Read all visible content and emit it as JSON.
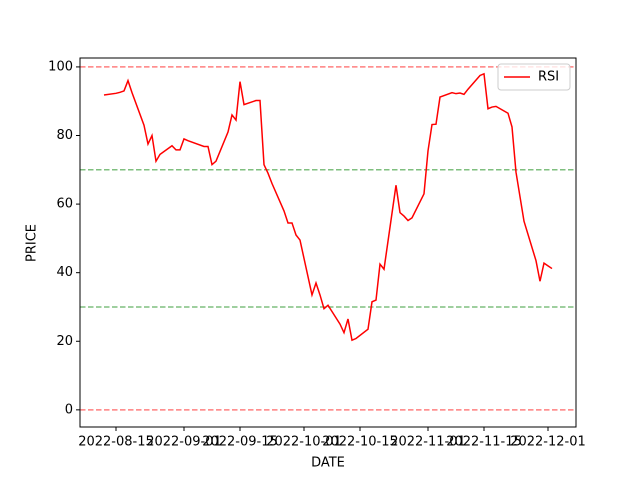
{
  "chart_data": {
    "type": "line",
    "xlabel": "DATE",
    "ylabel": "PRICE",
    "x": [
      "2022-08-12",
      "2022-08-15",
      "2022-08-16",
      "2022-08-17",
      "2022-08-18",
      "2022-08-19",
      "2022-08-22",
      "2022-08-23",
      "2022-08-24",
      "2022-08-25",
      "2022-08-26",
      "2022-08-29",
      "2022-08-30",
      "2022-08-31",
      "2022-09-01",
      "2022-09-02",
      "2022-09-06",
      "2022-09-07",
      "2022-09-08",
      "2022-09-09",
      "2022-09-12",
      "2022-09-13",
      "2022-09-14",
      "2022-09-15",
      "2022-09-16",
      "2022-09-19",
      "2022-09-20",
      "2022-09-21",
      "2022-09-22",
      "2022-09-23",
      "2022-09-26",
      "2022-09-27",
      "2022-09-28",
      "2022-09-29",
      "2022-09-30",
      "2022-10-03",
      "2022-10-04",
      "2022-10-05",
      "2022-10-06",
      "2022-10-07",
      "2022-10-10",
      "2022-10-11",
      "2022-10-12",
      "2022-10-13",
      "2022-10-14",
      "2022-10-17",
      "2022-10-18",
      "2022-10-19",
      "2022-10-20",
      "2022-10-21",
      "2022-10-24",
      "2022-10-25",
      "2022-10-26",
      "2022-10-27",
      "2022-10-28",
      "2022-10-31",
      "2022-11-01",
      "2022-11-02",
      "2022-11-03",
      "2022-11-04",
      "2022-11-07",
      "2022-11-08",
      "2022-11-09",
      "2022-11-10",
      "2022-11-11",
      "2022-11-14",
      "2022-11-15",
      "2022-11-16",
      "2022-11-17",
      "2022-11-18",
      "2022-11-21",
      "2022-11-22",
      "2022-11-23",
      "2022-11-25",
      "2022-11-28",
      "2022-11-29",
      "2022-11-30",
      "2022-12-01",
      "2022-12-02"
    ],
    "series": [
      {
        "name": "RSI",
        "color": "#ff0000",
        "values": [
          91.8,
          92.3,
          92.6,
          93,
          96,
          92.5,
          83,
          77.5,
          80,
          72.5,
          74.5,
          77,
          75.8,
          75.8,
          79,
          78.5,
          76.8,
          76.8,
          71.5,
          72.5,
          81,
          86,
          84.5,
          95.7,
          89,
          90.2,
          90.2,
          71.5,
          69,
          66,
          58,
          54.5,
          54.5,
          51,
          49.5,
          33.5,
          37,
          33.5,
          29.5,
          30.5,
          25,
          22.5,
          26.5,
          20.3,
          20.8,
          23.5,
          31.5,
          32,
          42.5,
          41,
          65.5,
          57.5,
          56.5,
          55.2,
          56,
          63,
          75.5,
          83.2,
          83.3,
          91.2,
          92.5,
          92.2,
          92.4,
          92,
          93.5,
          97.5,
          98,
          87.8,
          88.3,
          88.5,
          86.5,
          82.5,
          69.3,
          55,
          43.5,
          37.5,
          42.8,
          42,
          41.2
        ]
      }
    ],
    "hlines": [
      {
        "value": 100,
        "color": "#ff0000"
      },
      {
        "value": 70,
        "color": "#008000"
      },
      {
        "value": 30,
        "color": "#008000"
      },
      {
        "value": 0,
        "color": "#ff0000"
      }
    ],
    "xlim": [
      "2022-08-06",
      "2022-12-08"
    ],
    "xticks": [
      "2022-08-15",
      "2022-09-01",
      "2022-09-15",
      "2022-10-01",
      "2022-10-15",
      "2022-11-01",
      "2022-11-15",
      "2022-12-01"
    ],
    "ylim": [
      -5,
      102.6
    ],
    "yticks": [
      0,
      20,
      40,
      60,
      80,
      100
    ],
    "legend": "upper right"
  }
}
